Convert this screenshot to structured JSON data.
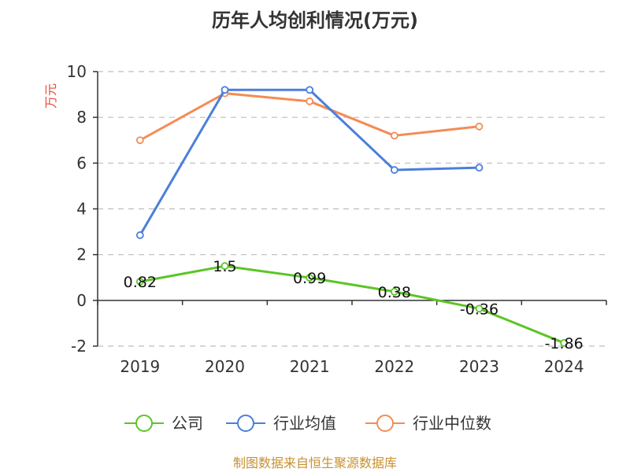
{
  "title": "历年人均创利情况(万元)",
  "source": "制图数据来自恒生聚源数据库",
  "colors": {
    "公司": "#5cc527",
    "行业均值": "#4a7fdb",
    "行业中位数": "#f48c55",
    "axis": "#333333",
    "grid": "#bdbdbd"
  },
  "legend": {
    "position": "bottom",
    "items": [
      "公司",
      "行业均值",
      "行业中位数"
    ]
  },
  "chart_data": {
    "type": "line",
    "title": "历年人均创利情况(万元)",
    "xlabel": "",
    "ylabel": "万元",
    "categories": [
      "2019",
      "2020",
      "2021",
      "2022",
      "2023",
      "2024"
    ],
    "ylim": [
      -2,
      10
    ],
    "yticks": [
      -2,
      0,
      2,
      4,
      6,
      8,
      10
    ],
    "grid": true,
    "series": [
      {
        "name": "公司",
        "values": [
          0.82,
          1.5,
          0.99,
          0.38,
          -0.36,
          -1.86
        ],
        "labels": [
          "0.82",
          "1.5",
          "0.99",
          "0.38",
          "-0.36",
          "-1.86"
        ]
      },
      {
        "name": "行业均值",
        "values": [
          2.85,
          9.2,
          9.2,
          5.7,
          5.8,
          null
        ]
      },
      {
        "name": "行业中位数",
        "values": [
          7.0,
          9.05,
          8.7,
          7.2,
          7.6,
          null
        ]
      }
    ]
  }
}
